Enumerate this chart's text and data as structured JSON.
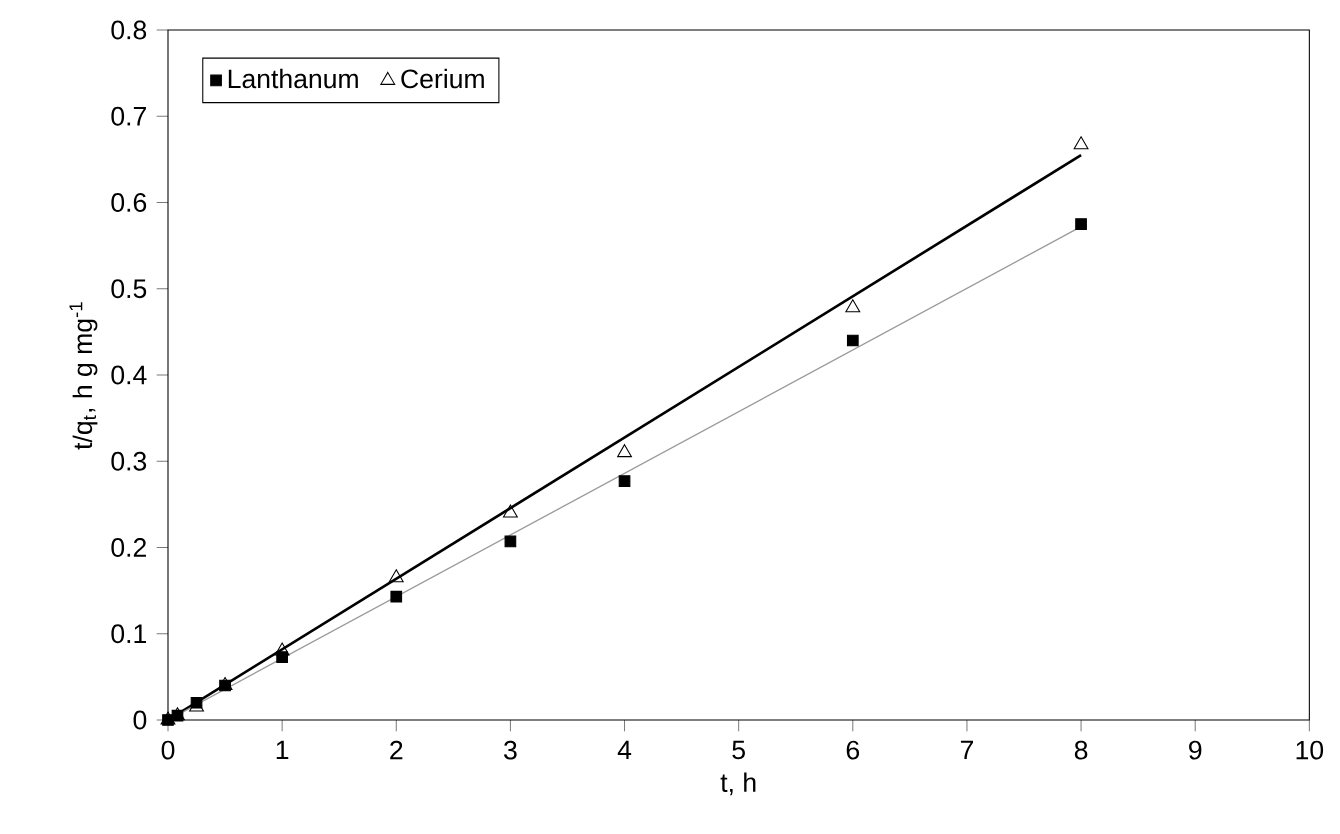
{
  "chart_data": {
    "type": "scatter",
    "xlabel": "t, h",
    "ylabel": "t/q$_{t}$, h g mg$^{-1}$",
    "xlim": [
      0,
      10
    ],
    "ylim": [
      0,
      0.8
    ],
    "xticks": [
      0,
      1,
      2,
      3,
      4,
      5,
      6,
      7,
      8,
      9,
      10
    ],
    "yticks": [
      0,
      0.1,
      0.2,
      0.3,
      0.4,
      0.5,
      0.6,
      0.7,
      0.8
    ],
    "legend": "top left",
    "grid": false,
    "series": [
      {
        "name": "Lanthanum",
        "marker": "square",
        "color": "#000000",
        "x": [
          0,
          0.083,
          0.25,
          0.5,
          1,
          2,
          3,
          4,
          6,
          8
        ],
        "values": [
          0,
          0.005,
          0.02,
          0.04,
          0.073,
          0.143,
          0.207,
          0.277,
          0.44,
          0.575
        ]
      },
      {
        "name": "Cerium",
        "marker": "triangle",
        "color": "#000000",
        "x": [
          0,
          0.083,
          0.25,
          0.5,
          1,
          2,
          3,
          4,
          6,
          8
        ],
        "values": [
          0,
          0.005,
          0.015,
          0.04,
          0.08,
          0.165,
          0.24,
          0.31,
          0.478,
          0.667
        ]
      },
      {
        "type": "line",
        "marker": "none",
        "color": "#000000",
        "x": [
          0,
          8
        ],
        "values": [
          0,
          0.655
        ]
      },
      {
        "type": "line",
        "marker": "none",
        "color": "#9a9a9a",
        "x": [
          0,
          8
        ],
        "values": [
          0,
          0.572
        ]
      }
    ]
  }
}
